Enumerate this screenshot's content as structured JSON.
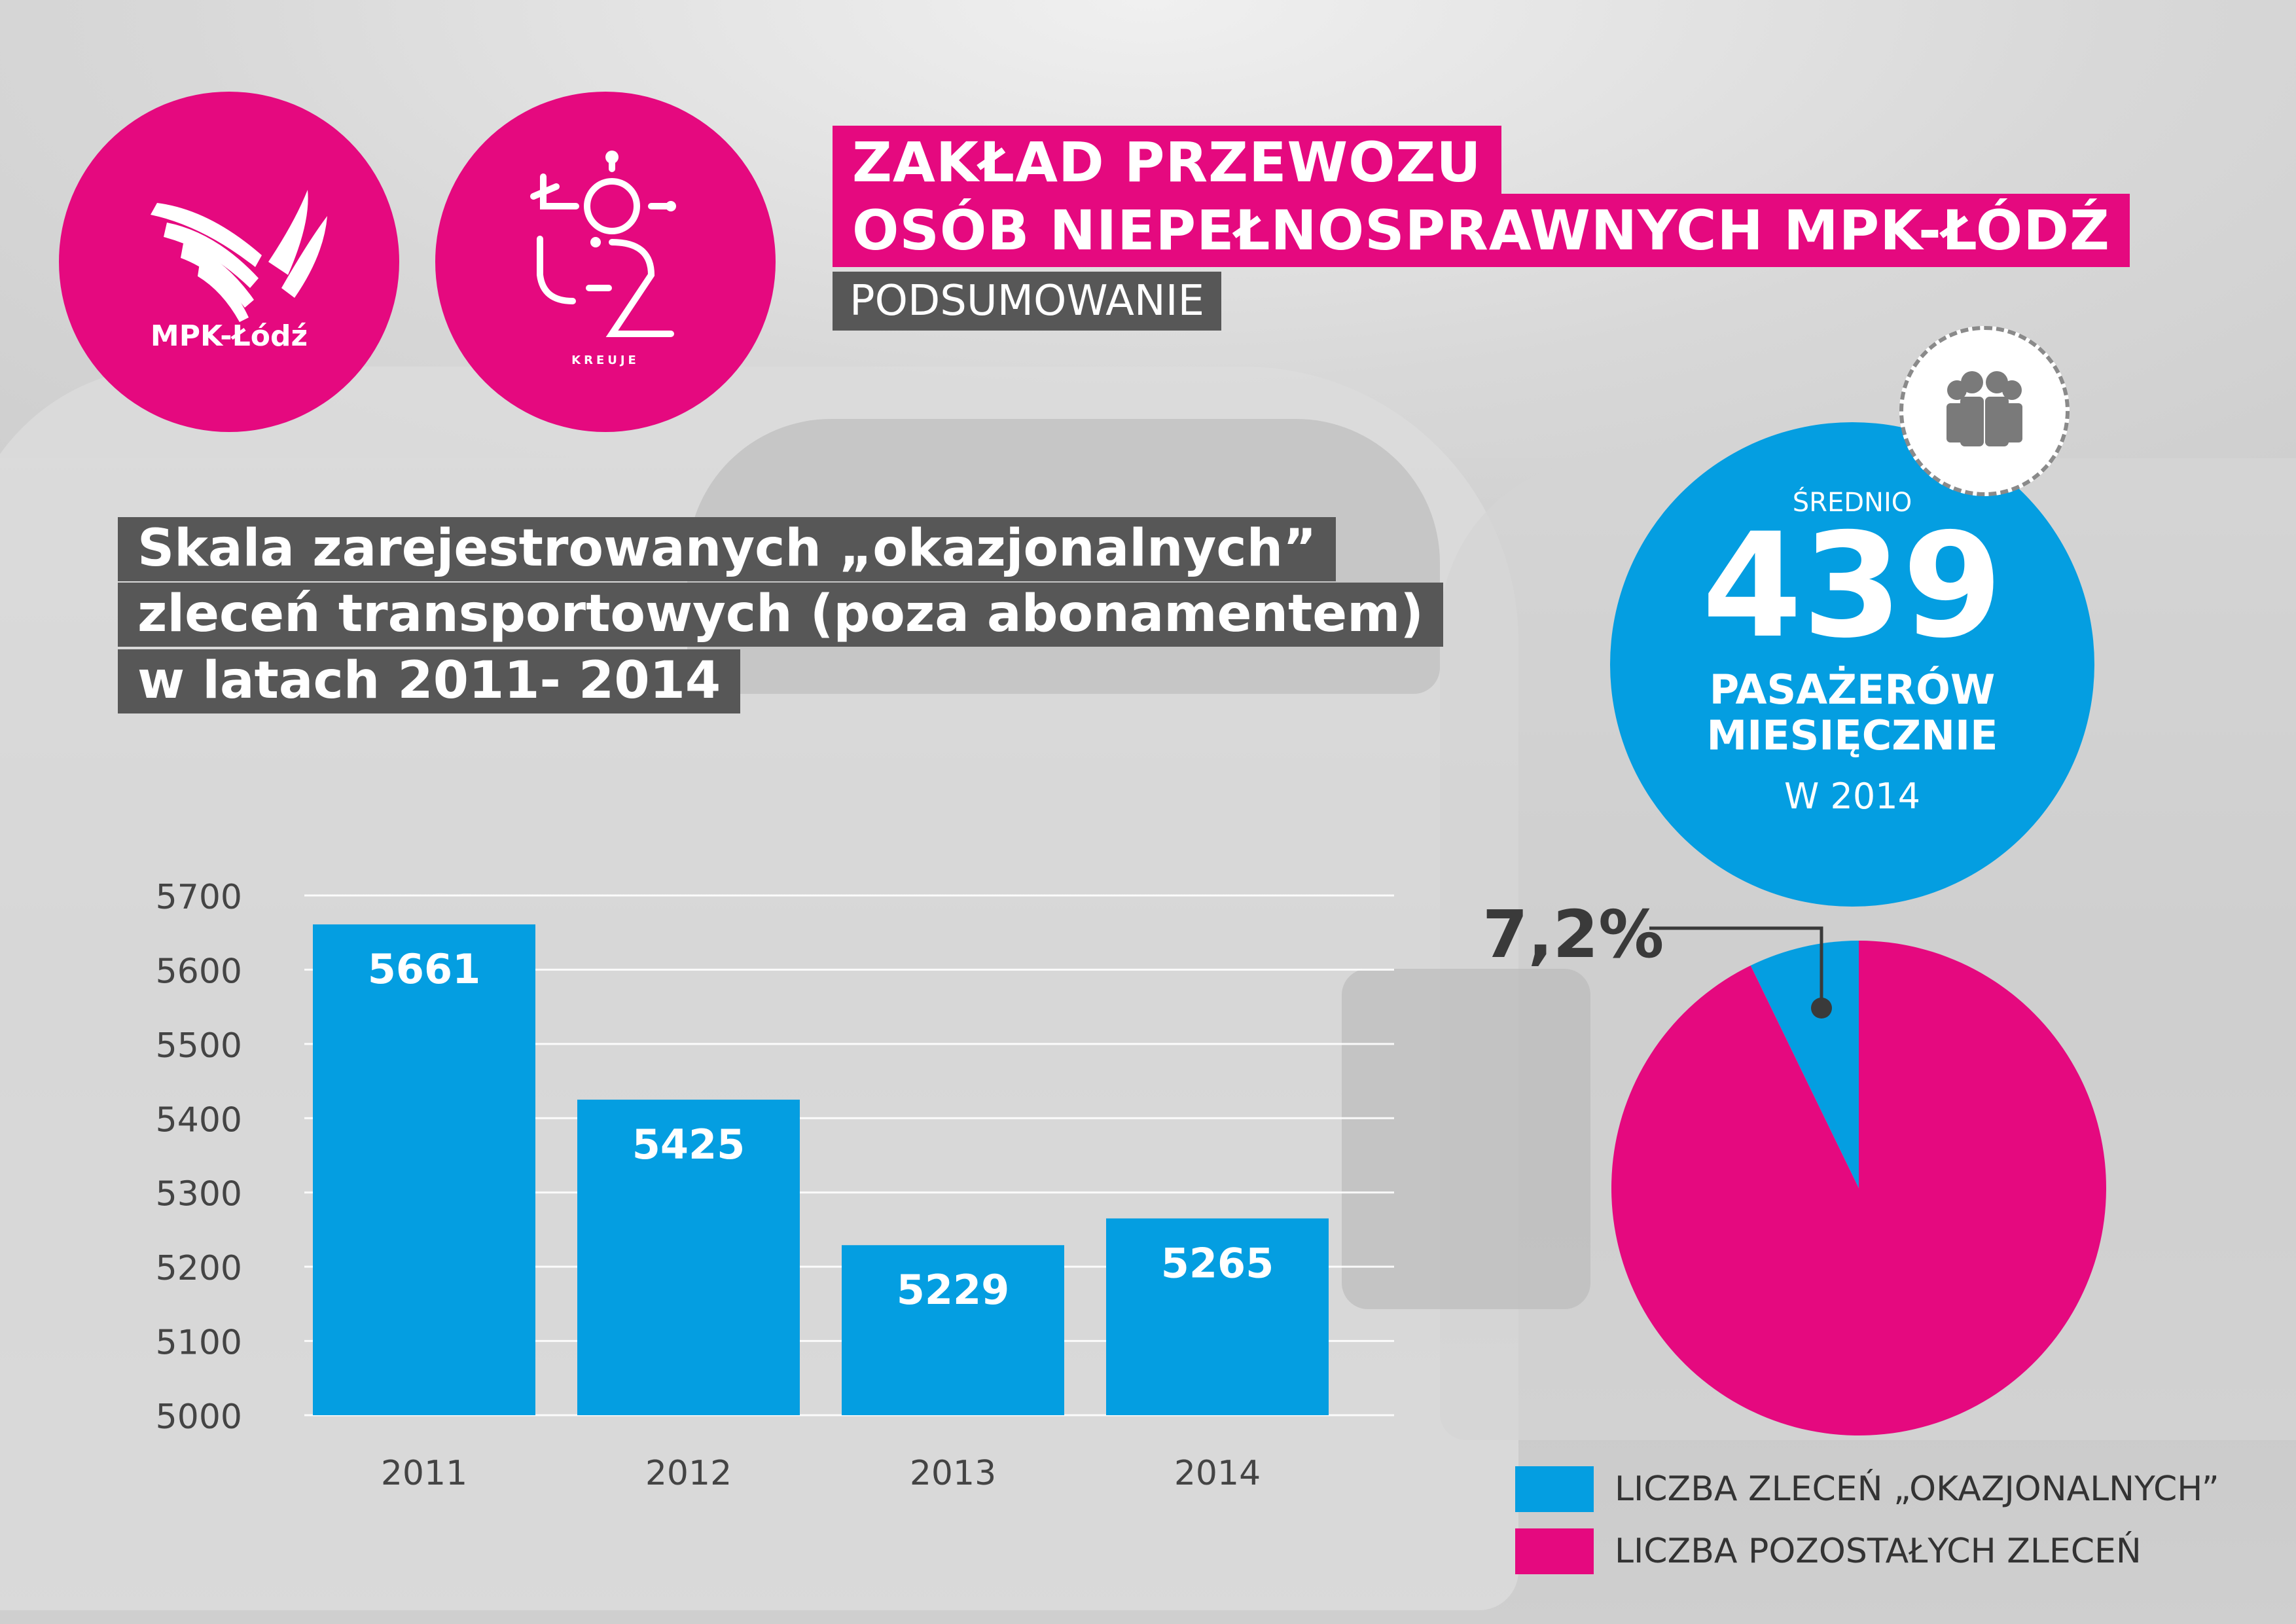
{
  "header": {
    "title_line1": "ZAKŁAD PRZEWOZU",
    "title_line2": "OSÓB NIEPEŁNOSPRAWNYCH MPK-ŁÓDŹ",
    "subtitle": "PODSUMOWANIE"
  },
  "logos": {
    "mpk_label": "MPK-Łódź",
    "lodz_caption": "KREUJE"
  },
  "heading": {
    "line1": "Skala zarejestrowanych „okazjonalnych”",
    "line2": "zleceń transportowych (poza abonamentem)",
    "line3": "w latach 2011- 2014"
  },
  "stat": {
    "prefix": "ŚREDNIO",
    "value": "439",
    "line1": "PASAŻERÓW",
    "line2": "MIESIĘCZNIE",
    "year": "W 2014"
  },
  "colors": {
    "pink": "#e5097f",
    "blue": "#049ee1",
    "gray": "#575757"
  },
  "chart_data": [
    {
      "type": "bar",
      "categories": [
        "2011",
        "2012",
        "2013",
        "2014"
      ],
      "values": [
        5661,
        5425,
        5229,
        5265
      ],
      "data_labels": [
        "5661",
        "5425",
        "5229",
        "5265"
      ],
      "ylim": [
        5000,
        5700
      ],
      "yticks": [
        5700,
        5600,
        5500,
        5400,
        5300,
        5200,
        5100,
        5000
      ],
      "grid": true,
      "color": "#049ee1"
    },
    {
      "type": "pie",
      "slices": [
        {
          "label": "LICZBA ZLECEŃ „OKAZJONALNYCH”",
          "value": 7.2,
          "color": "#049ee1"
        },
        {
          "label": "LICZBA POZOSTAŁYCH ZLECEŃ",
          "value": 92.8,
          "color": "#e5097f"
        }
      ],
      "annotation": "7,2%",
      "legend_position": "bottom"
    }
  ]
}
